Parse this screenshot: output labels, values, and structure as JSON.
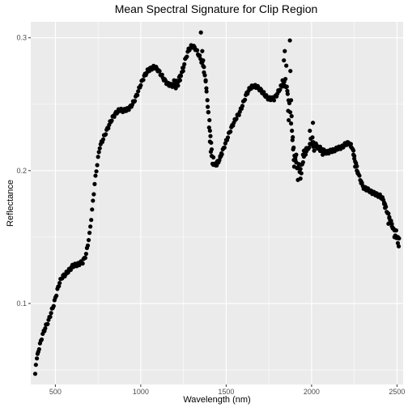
{
  "chart_data": {
    "type": "scatter",
    "title": "Mean Spectral Signature for Clip Region",
    "xlabel": "Wavelength (nm)",
    "ylabel": "Reflectance",
    "xlim": [
      356,
      2536
    ],
    "ylim": [
      0.039,
      0.312
    ],
    "x_ticks": [
      500,
      1000,
      1500,
      2000,
      2500
    ],
    "x_tick_labels": [
      "500",
      "1000",
      "1500",
      "2000",
      "2500"
    ],
    "y_ticks": [
      0.1,
      0.2,
      0.3
    ],
    "y_tick_labels": [
      "0.1",
      "0.2",
      "0.3"
    ],
    "x_minor_ticks": [
      750,
      1250,
      1750,
      2250
    ],
    "y_minor_ticks": [
      0.05,
      0.15,
      0.25
    ],
    "grid": true,
    "legend": "none",
    "colors": {
      "panel_background": "#ebebeb",
      "grid": "#ffffff",
      "points": "#000000"
    },
    "anchors": [
      [
        382,
        0.047
      ],
      [
        386,
        0.055
      ],
      [
        392,
        0.058
      ],
      [
        400,
        0.064
      ],
      [
        410,
        0.069
      ],
      [
        420,
        0.074
      ],
      [
        432,
        0.079
      ],
      [
        445,
        0.083
      ],
      [
        460,
        0.087
      ],
      [
        475,
        0.093
      ],
      [
        490,
        0.099
      ],
      [
        500,
        0.104
      ],
      [
        512,
        0.11
      ],
      [
        525,
        0.116
      ],
      [
        540,
        0.12
      ],
      [
        560,
        0.122
      ],
      [
        580,
        0.125
      ],
      [
        600,
        0.128
      ],
      [
        620,
        0.129
      ],
      [
        640,
        0.13
      ],
      [
        660,
        0.131
      ],
      [
        680,
        0.137
      ],
      [
        700,
        0.152
      ],
      [
        715,
        0.17
      ],
      [
        730,
        0.19
      ],
      [
        745,
        0.205
      ],
      [
        760,
        0.218
      ],
      [
        780,
        0.224
      ],
      [
        800,
        0.23
      ],
      [
        820,
        0.236
      ],
      [
        840,
        0.241
      ],
      [
        860,
        0.244
      ],
      [
        880,
        0.246
      ],
      [
        900,
        0.245
      ],
      [
        920,
        0.246
      ],
      [
        940,
        0.248
      ],
      [
        960,
        0.252
      ],
      [
        980,
        0.258
      ],
      [
        1000,
        0.265
      ],
      [
        1020,
        0.271
      ],
      [
        1040,
        0.275
      ],
      [
        1060,
        0.277
      ],
      [
        1080,
        0.278
      ],
      [
        1100,
        0.276
      ],
      [
        1120,
        0.272
      ],
      [
        1140,
        0.268
      ],
      [
        1160,
        0.265
      ],
      [
        1180,
        0.264
      ],
      [
        1200,
        0.265
      ],
      [
        1220,
        0.268
      ],
      [
        1240,
        0.274
      ],
      [
        1260,
        0.283
      ],
      [
        1280,
        0.291
      ],
      [
        1300,
        0.294
      ],
      [
        1320,
        0.292
      ],
      [
        1340,
        0.287
      ],
      [
        1360,
        0.281
      ],
      [
        1375,
        0.272
      ],
      [
        1390,
        0.254
      ],
      [
        1400,
        0.232
      ],
      [
        1410,
        0.214
      ],
      [
        1420,
        0.206
      ],
      [
        1430,
        0.204
      ],
      [
        1440,
        0.205
      ],
      [
        1460,
        0.208
      ],
      [
        1480,
        0.215
      ],
      [
        1500,
        0.222
      ],
      [
        1520,
        0.229
      ],
      [
        1540,
        0.235
      ],
      [
        1560,
        0.24
      ],
      [
        1580,
        0.244
      ],
      [
        1600,
        0.251
      ],
      [
        1620,
        0.258
      ],
      [
        1640,
        0.262
      ],
      [
        1660,
        0.264
      ],
      [
        1680,
        0.263
      ],
      [
        1700,
        0.261
      ],
      [
        1720,
        0.258
      ],
      [
        1740,
        0.255
      ],
      [
        1760,
        0.254
      ],
      [
        1780,
        0.254
      ],
      [
        1800,
        0.258
      ],
      [
        1820,
        0.263
      ],
      [
        1840,
        0.266
      ],
      [
        1855,
        0.262
      ],
      [
        1870,
        0.25
      ],
      [
        1885,
        0.23
      ],
      [
        1900,
        0.212
      ],
      [
        1915,
        0.203
      ],
      [
        1930,
        0.2
      ],
      [
        1945,
        0.205
      ],
      [
        1960,
        0.212
      ],
      [
        1980,
        0.217
      ],
      [
        2000,
        0.221
      ],
      [
        2020,
        0.22
      ],
      [
        2040,
        0.217
      ],
      [
        2060,
        0.215
      ],
      [
        2080,
        0.214
      ],
      [
        2100,
        0.214
      ],
      [
        2120,
        0.215
      ],
      [
        2140,
        0.216
      ],
      [
        2160,
        0.217
      ],
      [
        2180,
        0.218
      ],
      [
        2200,
        0.22
      ],
      [
        2220,
        0.221
      ],
      [
        2240,
        0.217
      ],
      [
        2260,
        0.205
      ],
      [
        2280,
        0.195
      ],
      [
        2300,
        0.188
      ],
      [
        2320,
        0.186
      ],
      [
        2340,
        0.185
      ],
      [
        2360,
        0.183
      ],
      [
        2380,
        0.182
      ],
      [
        2400,
        0.181
      ],
      [
        2420,
        0.178
      ],
      [
        2440,
        0.17
      ],
      [
        2460,
        0.163
      ],
      [
        2480,
        0.156
      ],
      [
        2500,
        0.148
      ],
      [
        2510,
        0.143
      ]
    ],
    "extra_points": [
      [
        1195,
        0.268
      ],
      [
        1205,
        0.262
      ],
      [
        1218,
        0.264
      ],
      [
        1230,
        0.268
      ],
      [
        1248,
        0.275
      ],
      [
        1352,
        0.304
      ],
      [
        1360,
        0.29
      ],
      [
        1365,
        0.283
      ],
      [
        1370,
        0.278
      ],
      [
        1380,
        0.268
      ],
      [
        1384,
        0.262
      ],
      [
        1392,
        0.248
      ],
      [
        1396,
        0.244
      ],
      [
        1402,
        0.238
      ],
      [
        1405,
        0.23
      ],
      [
        1408,
        0.226
      ],
      [
        1412,
        0.221
      ],
      [
        1415,
        0.216
      ],
      [
        1425,
        0.21
      ],
      [
        1445,
        0.204
      ],
      [
        1455,
        0.207
      ],
      [
        1465,
        0.21
      ],
      [
        1472,
        0.213
      ],
      [
        1830,
        0.268
      ],
      [
        1838,
        0.283
      ],
      [
        1843,
        0.29
      ],
      [
        1847,
        0.269
      ],
      [
        1852,
        0.279
      ],
      [
        1858,
        0.26
      ],
      [
        1863,
        0.245
      ],
      [
        1866,
        0.238
      ],
      [
        1873,
        0.298
      ],
      [
        1876,
        0.275
      ],
      [
        1880,
        0.253
      ],
      [
        1883,
        0.241
      ],
      [
        1888,
        0.223
      ],
      [
        1892,
        0.216
      ],
      [
        1896,
        0.208
      ],
      [
        1898,
        0.203
      ],
      [
        1905,
        0.208
      ],
      [
        1910,
        0.212
      ],
      [
        1920,
        0.193
      ],
      [
        1925,
        0.205
      ],
      [
        1935,
        0.194
      ],
      [
        1940,
        0.198
      ],
      [
        1950,
        0.212
      ],
      [
        1955,
        0.215
      ],
      [
        1965,
        0.216
      ],
      [
        1970,
        0.217
      ],
      [
        1990,
        0.23
      ],
      [
        1995,
        0.224
      ],
      [
        2005,
        0.225
      ],
      [
        2008,
        0.236
      ],
      [
        2010,
        0.218
      ],
      [
        2015,
        0.215
      ],
      [
        2025,
        0.218
      ],
      [
        2030,
        0.219
      ],
      [
        2050,
        0.218
      ],
      [
        2055,
        0.216
      ],
      [
        2065,
        0.212
      ],
      [
        2070,
        0.216
      ],
      [
        2090,
        0.213
      ],
      [
        2110,
        0.214
      ],
      [
        2130,
        0.216
      ],
      [
        2150,
        0.216
      ],
      [
        2170,
        0.217
      ],
      [
        2190,
        0.219
      ],
      [
        2210,
        0.22
      ],
      [
        2230,
        0.218
      ],
      [
        2245,
        0.212
      ],
      [
        2250,
        0.209
      ],
      [
        2255,
        0.203
      ],
      [
        2265,
        0.2
      ],
      [
        2270,
        0.198
      ],
      [
        2290,
        0.192
      ],
      [
        2310,
        0.187
      ],
      [
        2330,
        0.186
      ],
      [
        2350,
        0.184
      ],
      [
        2370,
        0.183
      ],
      [
        2390,
        0.182
      ],
      [
        2410,
        0.18
      ],
      [
        2425,
        0.176
      ],
      [
        2430,
        0.172
      ],
      [
        2445,
        0.168
      ],
      [
        2450,
        0.16
      ],
      [
        2455,
        0.165
      ],
      [
        2465,
        0.162
      ],
      [
        2470,
        0.158
      ],
      [
        2475,
        0.157
      ],
      [
        2485,
        0.15
      ],
      [
        2490,
        0.151
      ],
      [
        2495,
        0.155
      ],
      [
        2505,
        0.15
      ],
      [
        2512,
        0.149
      ]
    ]
  }
}
